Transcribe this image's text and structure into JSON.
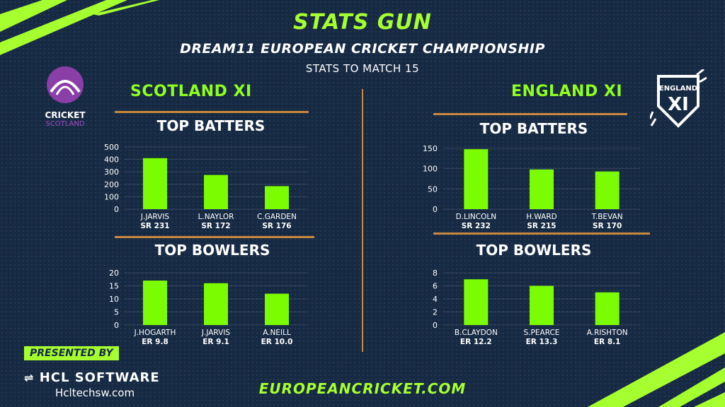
{
  "header": {
    "title": "STATS GUN",
    "subtitle": "DREAM11 EUROPEAN CRICKET CHAMPIONSHIP",
    "stats_to": "STATS TO MATCH 15"
  },
  "teams": {
    "left": {
      "name": "SCOTLAND  XI",
      "logo_word": "CRICKET",
      "logo_word2": "SCOTLAND"
    },
    "right": {
      "name": "ENGLAND XI",
      "logo_word": "ENGLAND",
      "logo_word2": "XI"
    }
  },
  "sections": {
    "batters": "TOP BATTERS",
    "bowlers": "TOP BOWLERS"
  },
  "footer": {
    "link": "EUROPEANCRICKET.COM",
    "presented_by": "PRESENTED BY",
    "sponsor": "HCL SOFTWARE",
    "sponsor_link": "Hcltechsw.com"
  },
  "colors": {
    "background": "#172a44",
    "accent": "#a6ff2f",
    "bar": "#7cfc00",
    "rule": "#c8883e"
  },
  "chart_data": [
    {
      "id": "scotland-batters",
      "type": "bar",
      "title": "TOP BATTERS",
      "categories": [
        "J.JARVIS",
        "L.NAYLOR",
        "C.GARDEN"
      ],
      "sublabels": [
        "SR 231",
        "SR 172",
        "SR 176"
      ],
      "values": [
        410,
        275,
        185
      ],
      "yticks": [
        0,
        100,
        200,
        300,
        400,
        500
      ],
      "ylim": [
        0,
        500
      ],
      "grid": true
    },
    {
      "id": "scotland-bowlers",
      "type": "bar",
      "title": "TOP BOWLERS",
      "categories": [
        "J.HOGARTH",
        "J.JARVIS",
        "A.NEILL"
      ],
      "sublabels": [
        "ER 9.8",
        "ER 9.1",
        "ER 10.0"
      ],
      "values": [
        17,
        16,
        12
      ],
      "yticks": [
        0,
        5,
        10,
        15,
        20
      ],
      "ylim": [
        0,
        20
      ],
      "grid": true
    },
    {
      "id": "england-batters",
      "type": "bar",
      "title": "TOP BATTERS",
      "categories": [
        "D.LINCOLN",
        "H.WARD",
        "T.BEVAN"
      ],
      "sublabels": [
        "SR 232",
        "SR 215",
        "SR 170"
      ],
      "values": [
        148,
        98,
        93
      ],
      "yticks": [
        0,
        50,
        100,
        150
      ],
      "ylim": [
        0,
        150
      ],
      "grid": true
    },
    {
      "id": "england-bowlers",
      "type": "bar",
      "title": "TOP BOWLERS",
      "categories": [
        "B.CLAYDON",
        "S.PEARCE",
        "A.RISHTON"
      ],
      "sublabels": [
        "ER 12.2",
        "ER 13.3",
        "ER 8.1"
      ],
      "values": [
        7,
        6,
        5
      ],
      "yticks": [
        0,
        2,
        4,
        6,
        8
      ],
      "ylim": [
        0,
        8
      ],
      "grid": true
    }
  ]
}
